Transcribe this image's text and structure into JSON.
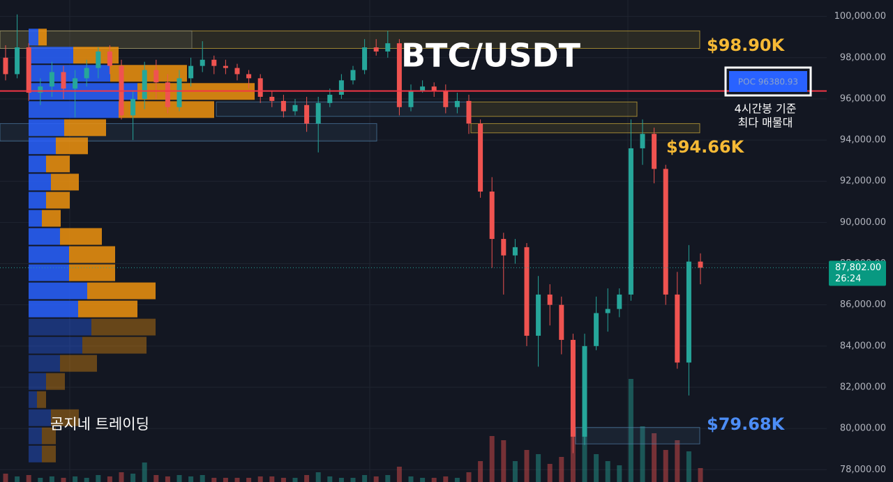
{
  "chart_data": {
    "type": "candlestick",
    "title": "BTC/USDT",
    "ylim": [
      77400,
      100800
    ],
    "yticks": [
      {
        "value": 78000,
        "label": "78,000.00"
      },
      {
        "value": 80000,
        "label": "80,000.00"
      },
      {
        "value": 82000,
        "label": "82,000.00"
      },
      {
        "value": 84000,
        "label": "84,000.00"
      },
      {
        "value": 86000,
        "label": "86,000.00"
      },
      {
        "value": 88000,
        "label": "88,000.00"
      },
      {
        "value": 90000,
        "label": "90,000.00"
      },
      {
        "value": 92000,
        "label": "92,000.00"
      },
      {
        "value": 94000,
        "label": "94,000.00"
      },
      {
        "value": 96000,
        "label": "96,000.00"
      },
      {
        "value": 98000,
        "label": "98,000.00"
      },
      {
        "value": 100000,
        "label": "100,000.00"
      }
    ],
    "grid": true,
    "up_color": "#26a69a",
    "down_color": "#ef5350",
    "candles": {
      "open": [
        98000,
        97200,
        98500,
        96300,
        96600,
        97300,
        96500,
        97000,
        97500,
        98300,
        97600,
        95200,
        96000,
        97400,
        96800,
        95600,
        97000,
        97600,
        97900,
        97600,
        97500,
        97200,
        97000,
        96100,
        95900,
        95400,
        95700,
        94800,
        95800,
        96200,
        96900,
        97400,
        98500,
        98300,
        98700,
        95600,
        96400,
        96600,
        96400,
        95600,
        95900,
        94800,
        91500,
        89200,
        88400,
        88800,
        84500,
        86500,
        86000,
        84300,
        79600,
        84000,
        85600,
        85800,
        86500,
        93600,
        94300,
        92600,
        86500,
        83200,
        88100
      ],
      "high": [
        98600,
        100100,
        98700,
        97000,
        97800,
        97600,
        97400,
        97900,
        98500,
        98600,
        97900,
        96400,
        97800,
        97900,
        97200,
        97400,
        98000,
        98800,
        98100,
        97900,
        97700,
        97400,
        97200,
        96400,
        96200,
        96000,
        96100,
        96100,
        96500,
        97200,
        97600,
        98900,
        98900,
        99300,
        98900,
        96700,
        96900,
        96800,
        96700,
        96300,
        96200,
        95000,
        92200,
        89500,
        89200,
        89000,
        87400,
        87000,
        86400,
        84600,
        84600,
        86400,
        86800,
        86800,
        95000,
        95000,
        94600,
        92800,
        87600,
        88900,
        88500
      ],
      "low": [
        96900,
        97000,
        95900,
        95700,
        96100,
        96000,
        95100,
        96600,
        97000,
        97200,
        95000,
        94000,
        95500,
        96000,
        95300,
        95400,
        96600,
        97300,
        97200,
        97200,
        96900,
        96500,
        95800,
        95600,
        95100,
        95200,
        94400,
        93400,
        95600,
        96000,
        96700,
        97200,
        98100,
        98000,
        95200,
        95400,
        96300,
        96100,
        95300,
        95300,
        94300,
        91200,
        87800,
        86500,
        88000,
        84000,
        83000,
        85000,
        83600,
        78800,
        79200,
        83800,
        84700,
        85400,
        86200,
        92800,
        91900,
        86000,
        82900,
        81600,
        87000
      ],
      "close": [
        97200,
        98500,
        96300,
        96600,
        97300,
        96500,
        97000,
        97500,
        98300,
        97600,
        95200,
        96000,
        97400,
        96800,
        95600,
        97000,
        97600,
        97900,
        97600,
        97500,
        97200,
        97000,
        96100,
        95900,
        95400,
        95700,
        94800,
        95800,
        96200,
        96900,
        97400,
        98500,
        98300,
        98700,
        95600,
        96400,
        96600,
        96400,
        95600,
        95900,
        94800,
        91500,
        89200,
        88400,
        88800,
        84500,
        86500,
        86000,
        84300,
        79600,
        84000,
        85600,
        85800,
        86500,
        93600,
        94300,
        92600,
        86500,
        83200,
        88100,
        87802
      ],
      "volume": [
        12,
        8,
        10,
        6,
        8,
        6,
        8,
        6,
        10,
        8,
        14,
        12,
        28,
        10,
        8,
        10,
        8,
        10,
        6,
        6,
        6,
        6,
        8,
        8,
        6,
        6,
        10,
        14,
        8,
        6,
        6,
        10,
        8,
        10,
        22,
        8,
        6,
        6,
        8,
        6,
        14,
        30,
        66,
        60,
        30,
        46,
        40,
        26,
        36,
        102,
        74,
        40,
        30,
        24,
        148,
        80,
        70,
        46,
        60,
        44,
        20
      ]
    },
    "volume_profile": {
      "levels": [
        99000,
        98120,
        97240,
        96360,
        95480,
        94600,
        93720,
        92840,
        91960,
        91080,
        90200,
        89320,
        88440,
        87560,
        86680,
        85800,
        84920,
        84040,
        83160,
        82280,
        81400,
        80520,
        79640,
        78760
      ],
      "buy": [
        14,
        64,
        117,
        156,
        129,
        51,
        39,
        25,
        32,
        25,
        19,
        45,
        58,
        58,
        84,
        71,
        90,
        77,
        45,
        25,
        12,
        32,
        19,
        19
      ],
      "sell": [
        12,
        65,
        110,
        168,
        137,
        60,
        46,
        34,
        40,
        34,
        27,
        60,
        66,
        66,
        98,
        85,
        92,
        92,
        53,
        27,
        13,
        40,
        20,
        20
      ],
      "buy_color": "#2962ff",
      "sell_color": "#f0930e"
    },
    "zones": [
      {
        "top": 99300,
        "bottom": 98450,
        "color": "#d4b13a"
      },
      {
        "top": 99300,
        "bottom": 98450,
        "color": "#8a8a70"
      },
      {
        "top": 95850,
        "bottom": 95150,
        "color": "#4f7fa8"
      },
      {
        "top": 95850,
        "bottom": 95150,
        "color": "#d4b13a"
      },
      {
        "top": 94800,
        "bottom": 94350,
        "color": "#d4b13a"
      },
      {
        "top": 94800,
        "bottom": 93950,
        "color": "#4f7fa8"
      },
      {
        "top": 80050,
        "bottom": 79250,
        "color": "#4f7fa8"
      }
    ],
    "poc": {
      "value": 96380.93,
      "label": "POC  96380.93",
      "color": "#f23645"
    },
    "last_price": {
      "value": 87802,
      "label": "87,802.00"
    },
    "countdown": "26:24",
    "annotations": [
      {
        "text": "$98.90K",
        "color": "#f5b935"
      },
      {
        "text": "$94.66K",
        "color": "#f5b935"
      },
      {
        "text": "$79.68K",
        "color": "#4c8df6"
      },
      {
        "text": "4시간봉 기준",
        "color": "#ffffff"
      },
      {
        "text": "최다 매물대",
        "color": "#ffffff"
      }
    ],
    "watermark": "곰지네 트레이딩"
  }
}
